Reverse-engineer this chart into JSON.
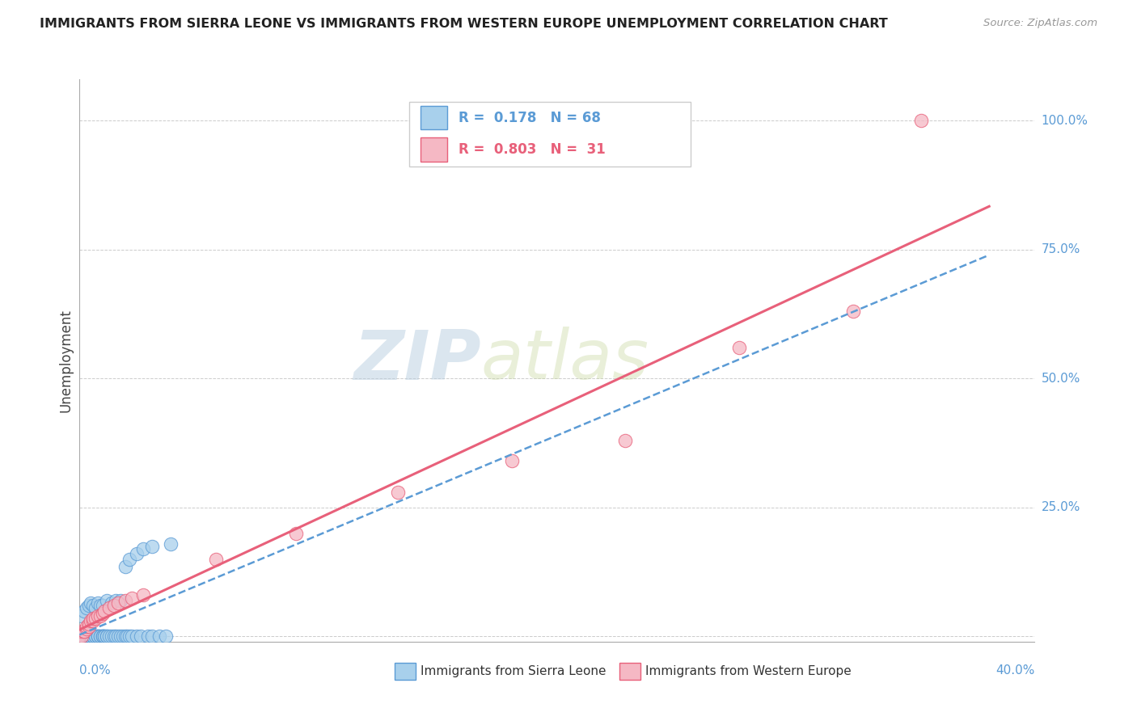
{
  "title": "IMMIGRANTS FROM SIERRA LEONE VS IMMIGRANTS FROM WESTERN EUROPE UNEMPLOYMENT CORRELATION CHART",
  "source": "Source: ZipAtlas.com",
  "ylabel": "Unemployment",
  "xlim": [
    0.0,
    0.42
  ],
  "ylim": [
    -0.01,
    1.08
  ],
  "ytick_positions": [
    0.0,
    0.25,
    0.5,
    0.75,
    1.0
  ],
  "ytick_labels": [
    "",
    "25.0%",
    "50.0%",
    "75.0%",
    "100.0%"
  ],
  "xtick_left_label": "0.0%",
  "xtick_right_label": "40.0%",
  "color_blue_fill": "#A8D0EC",
  "color_blue_edge": "#5B9BD5",
  "color_pink_fill": "#F5B8C4",
  "color_pink_edge": "#E8607A",
  "legend_line1": "R =  0.178   N = 68",
  "legend_line2": "R =  0.803   N =  31",
  "watermark_zip": "ZIP",
  "watermark_atlas": "atlas",
  "legend1_label": "Immigrants from Sierra Leone",
  "legend2_label": "Immigrants from Western Europe",
  "background": "#FFFFFF",
  "grid_color": "#CCCCCC",
  "sl_x": [
    0.0,
    0.001,
    0.001,
    0.002,
    0.002,
    0.003,
    0.003,
    0.003,
    0.004,
    0.004,
    0.004,
    0.005,
    0.005,
    0.005,
    0.006,
    0.006,
    0.006,
    0.007,
    0.007,
    0.008,
    0.008,
    0.008,
    0.009,
    0.009,
    0.01,
    0.01,
    0.01,
    0.011,
    0.011,
    0.012,
    0.012,
    0.013,
    0.014,
    0.015,
    0.016,
    0.017,
    0.018,
    0.019,
    0.02,
    0.021,
    0.022,
    0.023,
    0.025,
    0.027,
    0.03,
    0.032,
    0.035,
    0.038,
    0.001,
    0.002,
    0.003,
    0.004,
    0.005,
    0.006,
    0.007,
    0.008,
    0.009,
    0.01,
    0.012,
    0.014,
    0.016,
    0.018,
    0.02,
    0.022,
    0.025,
    0.028,
    0.032,
    0.04
  ],
  "sl_y": [
    0.0,
    0.0,
    0.0,
    0.0,
    0.0,
    0.0,
    0.0,
    0.0,
    0.0,
    0.0,
    0.0,
    0.0,
    0.0,
    0.0,
    0.0,
    0.0,
    0.0,
    0.0,
    0.0,
    0.0,
    0.0,
    0.0,
    0.0,
    0.0,
    0.0,
    0.0,
    0.0,
    0.0,
    0.0,
    0.0,
    0.0,
    0.0,
    0.0,
    0.0,
    0.0,
    0.0,
    0.0,
    0.0,
    0.0,
    0.0,
    0.0,
    0.0,
    0.0,
    0.0,
    0.0,
    0.0,
    0.0,
    0.0,
    0.04,
    0.05,
    0.055,
    0.06,
    0.065,
    0.06,
    0.055,
    0.065,
    0.06,
    0.06,
    0.07,
    0.065,
    0.07,
    0.07,
    0.135,
    0.15,
    0.16,
    0.17,
    0.175,
    0.18
  ],
  "we_x": [
    0.0,
    0.001,
    0.001,
    0.002,
    0.002,
    0.003,
    0.003,
    0.004,
    0.004,
    0.005,
    0.006,
    0.006,
    0.007,
    0.008,
    0.009,
    0.01,
    0.011,
    0.013,
    0.015,
    0.017,
    0.02,
    0.023,
    0.028,
    0.06,
    0.095,
    0.14,
    0.19,
    0.24,
    0.29,
    0.34,
    0.37
  ],
  "we_y": [
    0.0,
    0.0,
    0.01,
    0.01,
    0.01,
    0.015,
    0.02,
    0.02,
    0.025,
    0.03,
    0.03,
    0.035,
    0.035,
    0.04,
    0.04,
    0.045,
    0.05,
    0.055,
    0.06,
    0.065,
    0.07,
    0.075,
    0.08,
    0.15,
    0.2,
    0.28,
    0.34,
    0.38,
    0.56,
    0.63,
    1.0
  ]
}
